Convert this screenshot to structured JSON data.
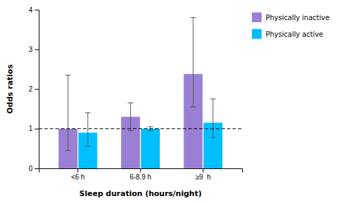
{
  "chart_data": {
    "type": "bar",
    "categories": [
      "<6 h",
      "6-8.9 h",
      "≥9  h"
    ],
    "series": [
      {
        "name": "Physically inactive",
        "color": "#9B7FD4",
        "values": [
          1.0,
          1.3,
          2.38
        ],
        "ci_low": [
          0.45,
          0.95,
          1.55
        ],
        "ci_high": [
          2.35,
          1.65,
          3.8
        ]
      },
      {
        "name": "Physically active",
        "color": "#00BFFF",
        "values": [
          0.9,
          1.0,
          1.15
        ],
        "ci_low": [
          0.55,
          0.95,
          0.78
        ],
        "ci_high": [
          1.4,
          1.05,
          1.75
        ]
      }
    ],
    "xlabel": "Sleep duration (hours/night)",
    "ylabel": "Odds ratios",
    "ylim": [
      0,
      4
    ],
    "yticks": [
      0,
      1,
      2,
      3,
      4
    ],
    "reference_line": 1.0,
    "grid": false,
    "legend": "right"
  }
}
